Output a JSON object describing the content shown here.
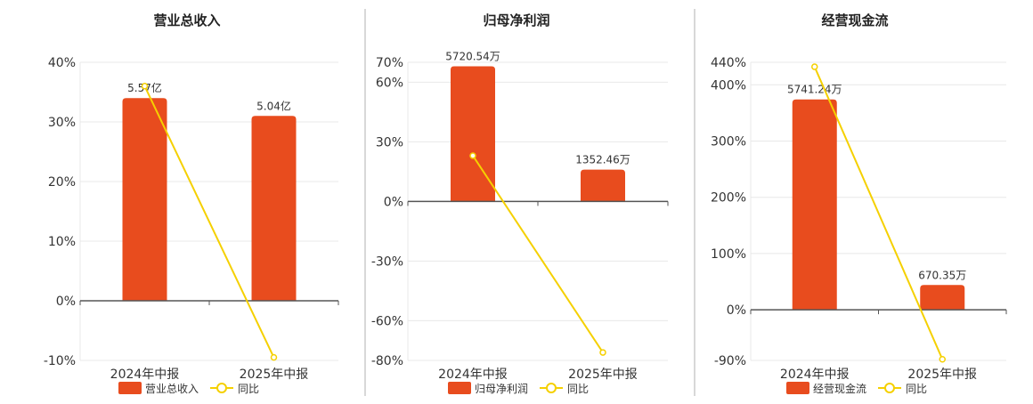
{
  "chart_data": [
    {
      "type": "bar",
      "title": "营业总收入",
      "categories": [
        "2024年中报",
        "2025年中报"
      ],
      "y_ticks": [
        "40%",
        "30%",
        "20%",
        "10%",
        "0%",
        "-10%"
      ],
      "ylim": [
        -10,
        40
      ],
      "series": [
        {
          "name": "营业总收入",
          "type": "bar",
          "values": [
            34.0,
            31.0
          ],
          "labels": [
            "5.57亿",
            "5.04亿"
          ]
        },
        {
          "name": "同比",
          "type": "line",
          "values": [
            36.0,
            -9.5
          ]
        }
      ]
    },
    {
      "type": "bar",
      "title": "归母净利润",
      "categories": [
        "2024年中报",
        "2025年中报"
      ],
      "y_ticks": [
        "70%",
        "60%",
        "30%",
        "0%",
        "-30%",
        "-60%",
        "-80%"
      ],
      "ylim": [
        -80,
        70
      ],
      "series": [
        {
          "name": "归母净利润",
          "type": "bar",
          "values": [
            68.0,
            16.0
          ],
          "labels": [
            "5720.54万",
            "1352.46万"
          ]
        },
        {
          "name": "同比",
          "type": "line",
          "values": [
            23.0,
            -76.0
          ]
        }
      ]
    },
    {
      "type": "bar",
      "title": "经营现金流",
      "categories": [
        "2024年中报",
        "2025年中报"
      ],
      "y_ticks": [
        "440%",
        "400%",
        "300%",
        "200%",
        "100%",
        "0%",
        "-90%"
      ],
      "ylim": [
        -90,
        440
      ],
      "series": [
        {
          "name": "经营现金流",
          "type": "bar",
          "values": [
            374.0,
            44.0
          ],
          "labels": [
            "5741.24万",
            "670.35万"
          ]
        },
        {
          "name": "同比",
          "type": "line",
          "values": [
            432.0,
            -88.0
          ]
        }
      ]
    }
  ],
  "colors": {
    "bar": "#e84c1e",
    "line": "#f5d000",
    "grid": "#e8e8e8",
    "axis": "#555555",
    "divider": "#b0b0b0"
  }
}
